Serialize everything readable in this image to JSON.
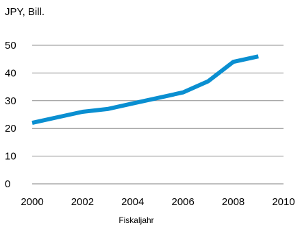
{
  "chart_data": {
    "type": "line",
    "unit_label": "JPY, Bill.",
    "xlabel": "Fiskaljahr",
    "ylabel": "",
    "xlim": [
      2000,
      2010
    ],
    "ylim": [
      0,
      50
    ],
    "x_ticks": [
      "2000",
      "2002",
      "2004",
      "2006",
      "2008",
      "2010"
    ],
    "y_ticks": [
      "0",
      "10",
      "20",
      "30",
      "40",
      "50"
    ],
    "grid": "horizontal",
    "legend": "none",
    "series": [
      {
        "color": "#0A8FD1",
        "x": [
          2000,
          2001,
          2002,
          2003,
          2004,
          2005,
          2006,
          2007,
          2008,
          2009
        ],
        "y": [
          22,
          24,
          26,
          27,
          29,
          31,
          33,
          37,
          44,
          46
        ]
      }
    ]
  }
}
